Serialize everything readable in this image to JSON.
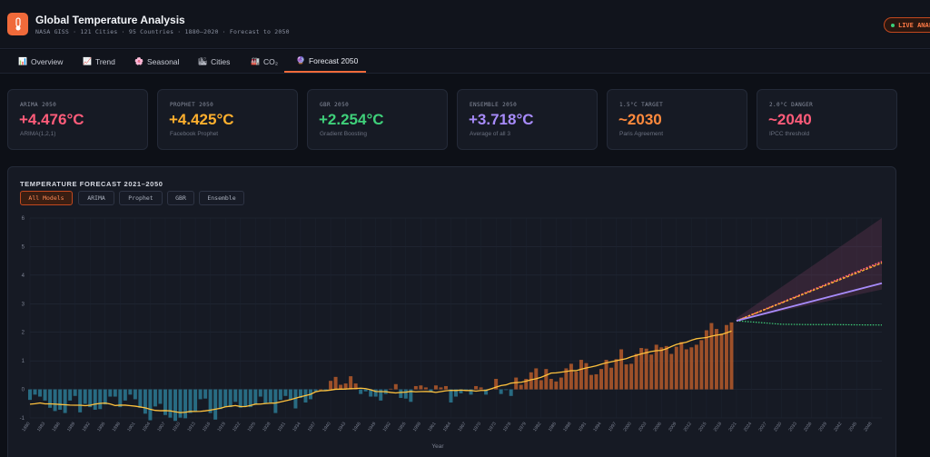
{
  "app": {
    "title": "Global Temperature Analysis",
    "subtitle": "NASA GISS · 121 Cities · 95 Countries · 1880–2020 · Forecast to 2050",
    "live_label": "LIVE ANALYSIS"
  },
  "tabs": [
    {
      "label": "Overview",
      "icon": "bar-chart-icon",
      "glyph": "📊"
    },
    {
      "label": "Trend",
      "icon": "trend-chart-icon",
      "glyph": "📈"
    },
    {
      "label": "Seasonal",
      "icon": "flower-icon",
      "glyph": "🌸"
    },
    {
      "label": "Cities",
      "icon": "city-chart-icon",
      "glyph": "🏙"
    },
    {
      "label": "CO₂",
      "icon": "co2-icon",
      "glyph": "🏭"
    },
    {
      "label": "Forecast 2050",
      "icon": "crystal-ball-icon",
      "glyph": "🔮",
      "active": true
    }
  ],
  "cards": [
    {
      "label": "ARIMA 2050",
      "value": "+4.476°C",
      "sub": "ARIMA(1,2,1)",
      "color": "#ff5c7a"
    },
    {
      "label": "PROPHET 2050",
      "value": "+4.425°C",
      "sub": "Facebook Prophet",
      "color": "#ffb02e"
    },
    {
      "label": "GBR 2050",
      "value": "+2.254°C",
      "sub": "Gradient Boosting",
      "color": "#3fd07a"
    },
    {
      "label": "ENSEMBLE 2050",
      "value": "+3.718°C",
      "sub": "Average of all 3",
      "color": "#a78bfa"
    },
    {
      "label": "1.5°C TARGET",
      "value": "~2030",
      "sub": "Paris Agreement",
      "color": "#ff8a3d"
    },
    {
      "label": "2.0°C DANGER",
      "value": "~2040",
      "sub": "IPCC threshold",
      "color": "#ff5c7a"
    }
  ],
  "panel": {
    "title": "TEMPERATURE FORECAST 2021–2050",
    "filters": [
      "All Models",
      "ARIMA",
      "Prophet",
      "GBR",
      "Ensemble"
    ],
    "active_filter": "All Models"
  },
  "chart_data": {
    "type": "bar",
    "xlabel": "Year",
    "ylabel": "",
    "ylim": [
      -1,
      6
    ],
    "yticks": [
      -1,
      0,
      1,
      2,
      3,
      4,
      5,
      6
    ],
    "grid": true,
    "legend": "none",
    "xticks": [
      1880,
      1883,
      1886,
      1889,
      1892,
      1895,
      1898,
      1901,
      1904,
      1907,
      1910,
      1913,
      1916,
      1919,
      1922,
      1925,
      1928,
      1931,
      1934,
      1937,
      1940,
      1943,
      1946,
      1949,
      1952,
      1955,
      1958,
      1961,
      1964,
      1967,
      1970,
      1973,
      1976,
      1979,
      1982,
      1985,
      1988,
      1991,
      1994,
      1997,
      2000,
      2003,
      2006,
      2009,
      2012,
      2015,
      2018,
      2021,
      2024,
      2027,
      2030,
      2033,
      2036,
      2039,
      2042,
      2045,
      2048
    ],
    "historical": {
      "years": [
        1880,
        2020
      ],
      "anomalies": [
        -0.16,
        -0.08,
        -0.11,
        -0.17,
        -0.28,
        -0.33,
        -0.31,
        -0.36,
        -0.17,
        -0.1,
        -0.35,
        -0.22,
        -0.27,
        -0.31,
        -0.3,
        -0.23,
        -0.11,
        -0.11,
        -0.27,
        -0.17,
        -0.08,
        -0.15,
        -0.28,
        -0.37,
        -0.47,
        -0.26,
        -0.22,
        -0.39,
        -0.43,
        -0.48,
        -0.43,
        -0.44,
        -0.36,
        -0.34,
        -0.15,
        -0.14,
        -0.36,
        -0.46,
        -0.3,
        -0.27,
        -0.27,
        -0.19,
        -0.28,
        -0.26,
        -0.27,
        -0.22,
        -0.11,
        -0.22,
        -0.2,
        -0.36,
        -0.16,
        -0.1,
        -0.16,
        -0.29,
        -0.13,
        -0.2,
        -0.15,
        -0.03,
        0.0,
        -0.02,
        0.13,
        0.19,
        0.07,
        0.09,
        0.2,
        0.09,
        -0.07,
        -0.03,
        -0.11,
        -0.11,
        -0.17,
        -0.07,
        0.01,
        0.08,
        -0.13,
        -0.14,
        -0.19,
        0.05,
        0.06,
        0.03,
        -0.03,
        0.06,
        0.03,
        0.05,
        -0.2,
        -0.11,
        -0.06,
        -0.02,
        -0.08,
        0.05,
        0.03,
        -0.08,
        0.01,
        0.16,
        -0.07,
        -0.01,
        -0.1,
        0.18,
        0.07,
        0.16,
        0.26,
        0.32,
        0.14,
        0.31,
        0.16,
        0.12,
        0.18,
        0.32,
        0.39,
        0.27,
        0.45,
        0.4,
        0.22,
        0.23,
        0.31,
        0.45,
        0.33,
        0.46,
        0.61,
        0.38,
        0.39,
        0.54,
        0.63,
        0.62,
        0.53,
        0.68,
        0.64,
        0.66,
        0.54,
        0.65,
        0.72,
        0.61,
        0.64,
        0.68,
        0.75,
        0.9,
        1.01,
        0.92,
        0.85,
        0.98,
        1.02
      ],
      "scale_factor": 2.3
    },
    "series": [
      {
        "name": "ARIMA",
        "color": "#ff5c7a",
        "x": [
          2021,
          2050
        ],
        "y": [
          2.4,
          4.476
        ]
      },
      {
        "name": "Prophet",
        "color": "#ffb02e",
        "x": [
          2021,
          2050
        ],
        "y": [
          2.4,
          4.425
        ]
      },
      {
        "name": "GBR",
        "color": "#3fd07a",
        "x": [
          2021,
          2025,
          2030,
          2035,
          2040,
          2045,
          2050
        ],
        "y": [
          2.4,
          2.35,
          2.28,
          2.27,
          2.27,
          2.26,
          2.254
        ]
      },
      {
        "name": "Ensemble",
        "color": "#a78bfa",
        "x": [
          2021,
          2050
        ],
        "y": [
          2.4,
          3.718
        ]
      }
    ],
    "confidence_band": {
      "x": [
        2021,
        2050
      ],
      "lower": [
        2.4,
        3.5
      ],
      "upper": [
        2.5,
        6.0
      ]
    }
  }
}
